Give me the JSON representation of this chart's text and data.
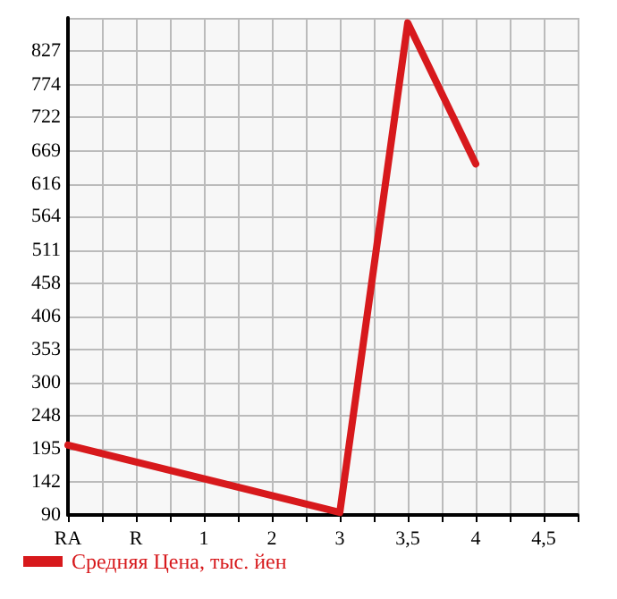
{
  "chart_data": {
    "type": "line",
    "categories": [
      "RA",
      "R",
      "1",
      "2",
      "3",
      "3,5",
      "4",
      "4,5"
    ],
    "series": [
      {
        "name": "Средняя Цена, тыс. йен",
        "color": "#d7191c",
        "values": [
          201,
          null,
          null,
          null,
          94,
          872,
          648,
          null
        ]
      }
    ],
    "ylim": [
      90,
      880
    ],
    "yticks": [
      90,
      142,
      195,
      248,
      300,
      353,
      406,
      458,
      511,
      564,
      616,
      669,
      722,
      774,
      827,
      {
        "value": 880,
        "label": null
      }
    ],
    "grid": true,
    "legend": "bottom left",
    "marker": "none",
    "line_style": "solid"
  }
}
